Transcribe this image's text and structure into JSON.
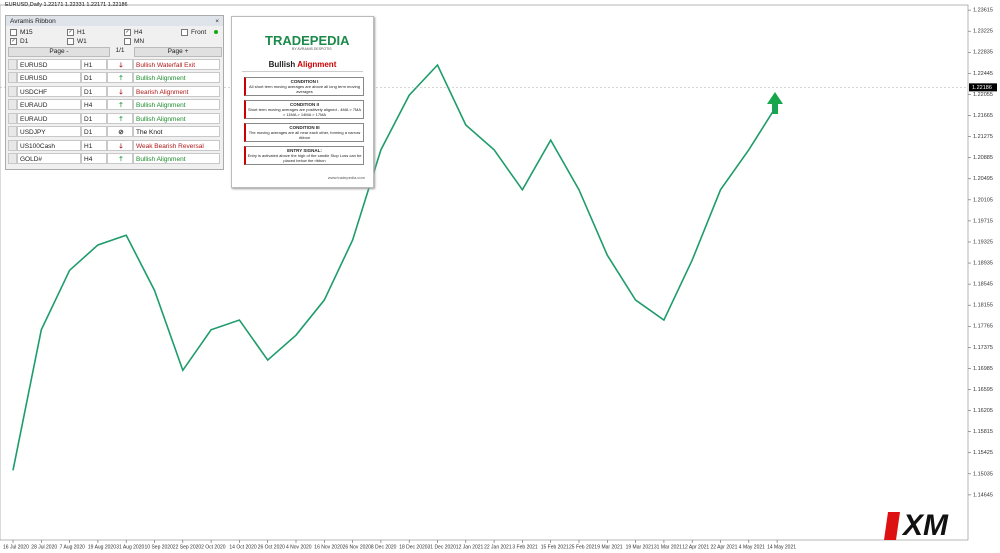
{
  "chart_header": "EURUSD,Daily  1.22171 1.22331 1.22171 1.22186",
  "chart_data": {
    "type": "line",
    "color": "#1e9c6b",
    "categories": [
      "16 Jul 2020",
      "28 Jul 2020",
      "7 Aug 2020",
      "19 Aug 2020",
      "31 Aug 2020",
      "10 Sep 2020",
      "22 Sep 2020",
      "2 Oct 2020",
      "14 Oct 2020",
      "26 Oct 2020",
      "4 Nov 2020",
      "16 Nov 2020",
      "26 Nov 2020",
      "8 Dec 2020",
      "18 Dec 2020",
      "31 Dec 2020",
      "12 Jan 2021",
      "22 Jan 2021",
      "3 Feb 2021",
      "15 Feb 2021",
      "25 Feb 2021",
      "9 Mar 2021",
      "19 Mar 2021",
      "31 Mar 2021",
      "12 Apr 2021",
      "22 Apr 2021",
      "4 May 2021",
      "14 May 2021"
    ],
    "values": [
      1.151,
      1.177,
      1.188,
      1.1927,
      1.1945,
      1.1843,
      1.1695,
      1.177,
      1.1788,
      1.1714,
      1.176,
      1.1825,
      1.1936,
      1.2103,
      1.2204,
      1.226,
      1.2149,
      1.2103,
      1.2029,
      1.2121,
      1.2029,
      1.1908,
      1.1825,
      1.1788,
      1.1899,
      1.2029,
      1.2103,
      1.2186
    ],
    "ylim": [
      1.1381,
      1.2371
    ],
    "yticks": [
      1.23615,
      1.23225,
      1.22835,
      1.22445,
      1.22055,
      1.21665,
      1.21275,
      1.20885,
      1.20495,
      1.20105,
      1.19715,
      1.19325,
      1.18935,
      1.18545,
      1.18155,
      1.17765,
      1.17375,
      1.16985,
      1.16595,
      1.16205,
      1.15815,
      1.15425,
      1.15035,
      1.14645
    ],
    "current_price": 1.22186
  },
  "scanner_panel": {
    "title": "Avramis Ribbon",
    "close": "×",
    "timeframes": [
      {
        "label": "M15",
        "checked": false
      },
      {
        "label": "H1",
        "checked": true
      },
      {
        "label": "H4",
        "checked": true
      },
      {
        "label": "Front",
        "checked": false
      },
      {
        "label": "D1",
        "checked": true
      },
      {
        "label": "W1",
        "checked": false
      },
      {
        "label": "MN",
        "checked": false
      }
    ],
    "page_prev": "Page -",
    "page_info": "1/1",
    "page_next": "Page +",
    "rows": [
      {
        "symbol": "EURUSD",
        "tf": "H1",
        "direction": "down",
        "signal": "Bullish Waterfall Exit"
      },
      {
        "symbol": "EURUSD",
        "tf": "D1",
        "direction": "up",
        "signal": "Bullish Alignment"
      },
      {
        "symbol": "USDCHF",
        "tf": "D1",
        "direction": "down",
        "signal": "Bearish Alignment"
      },
      {
        "symbol": "EURAUD",
        "tf": "H4",
        "direction": "up",
        "signal": "Bullish Alignment"
      },
      {
        "symbol": "EURAUD",
        "tf": "D1",
        "direction": "up",
        "signal": "Bullish Alignment"
      },
      {
        "symbol": "USDJPY",
        "tf": "D1",
        "direction": "knot",
        "signal": "The Knot"
      },
      {
        "symbol": "US100Cash",
        "tf": "H1",
        "direction": "down",
        "signal": "Weak Bearish Reversal"
      },
      {
        "symbol": "GOLD#",
        "tf": "H4",
        "direction": "up",
        "signal": "Bullish Alignment"
      }
    ]
  },
  "tradepedia_panel": {
    "logo": "TRADEPEDIA",
    "logo_sub": "BY AVRAMIS DESPOTIS",
    "heading_a": "Bullish",
    "heading_b": "Alignment",
    "conditions": [
      {
        "title": "CONDITION I",
        "text": "All short term moving averages are above all long term moving averages"
      },
      {
        "title": "CONDITION II",
        "text": "Short term moving averages are positively aligned - 4MA > 7MA > 11MA > 14MA > 17MA"
      },
      {
        "title": "CONDITION III",
        "text": "The moving averages are all near each other, forming a narrow ribbon"
      },
      {
        "title": "ENTRY SIGNAL:",
        "text": "Entry is activated above the high of the candle Stop Loss can be placed below the ribbon"
      }
    ],
    "url": "www.tradepedia.com"
  },
  "watermark": "XM"
}
